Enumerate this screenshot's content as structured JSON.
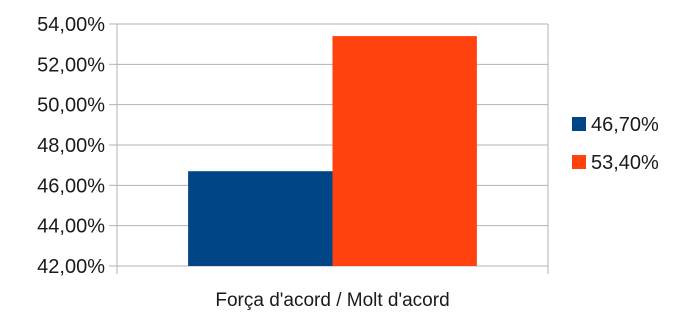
{
  "chart_data": {
    "type": "bar",
    "categories": [
      "Força d'acord / Molt d'acord"
    ],
    "series": [
      {
        "name": "46,70%",
        "values": [
          0.467
        ],
        "color": "#004586"
      },
      {
        "name": "53,40%",
        "values": [
          0.534
        ],
        "color": "#ff420e"
      }
    ],
    "ylim": [
      0.42,
      0.54
    ],
    "y_ticks": [
      0.42,
      0.44,
      0.46,
      0.48,
      0.5,
      0.52,
      0.54
    ],
    "y_tick_labels": [
      "42,00%",
      "44,00%",
      "46,00%",
      "48,00%",
      "50,00%",
      "52,00%",
      "54,00%"
    ],
    "grid": true,
    "legend_position": "right"
  }
}
